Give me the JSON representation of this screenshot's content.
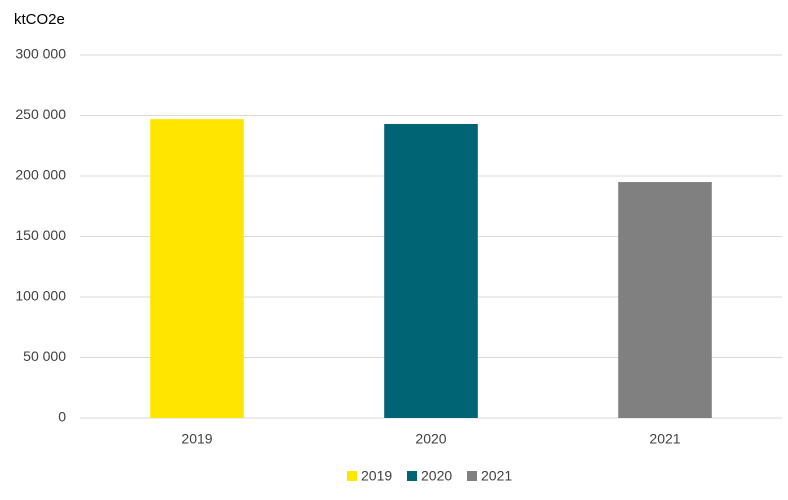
{
  "chart_data": {
    "type": "bar",
    "y_label": "ktCO2e",
    "categories": [
      "2019",
      "2020",
      "2021"
    ],
    "values": [
      247000,
      243000,
      195000
    ],
    "colors": [
      "#ffe600",
      "#006475",
      "#808080"
    ],
    "ylim": [
      0,
      300000
    ],
    "yticks": [
      0,
      {
        "value": 50000,
        "label": "50 000"
      },
      {
        "value": 100000,
        "label": "100 000"
      },
      {
        "value": 150000,
        "label": "150 000"
      },
      {
        "value": 200000,
        "label": "200 000"
      },
      {
        "value": 250000,
        "label": "250 000"
      },
      {
        "value": 300000,
        "label": "300 000"
      }
    ],
    "grid": true,
    "legend": "bottom"
  }
}
